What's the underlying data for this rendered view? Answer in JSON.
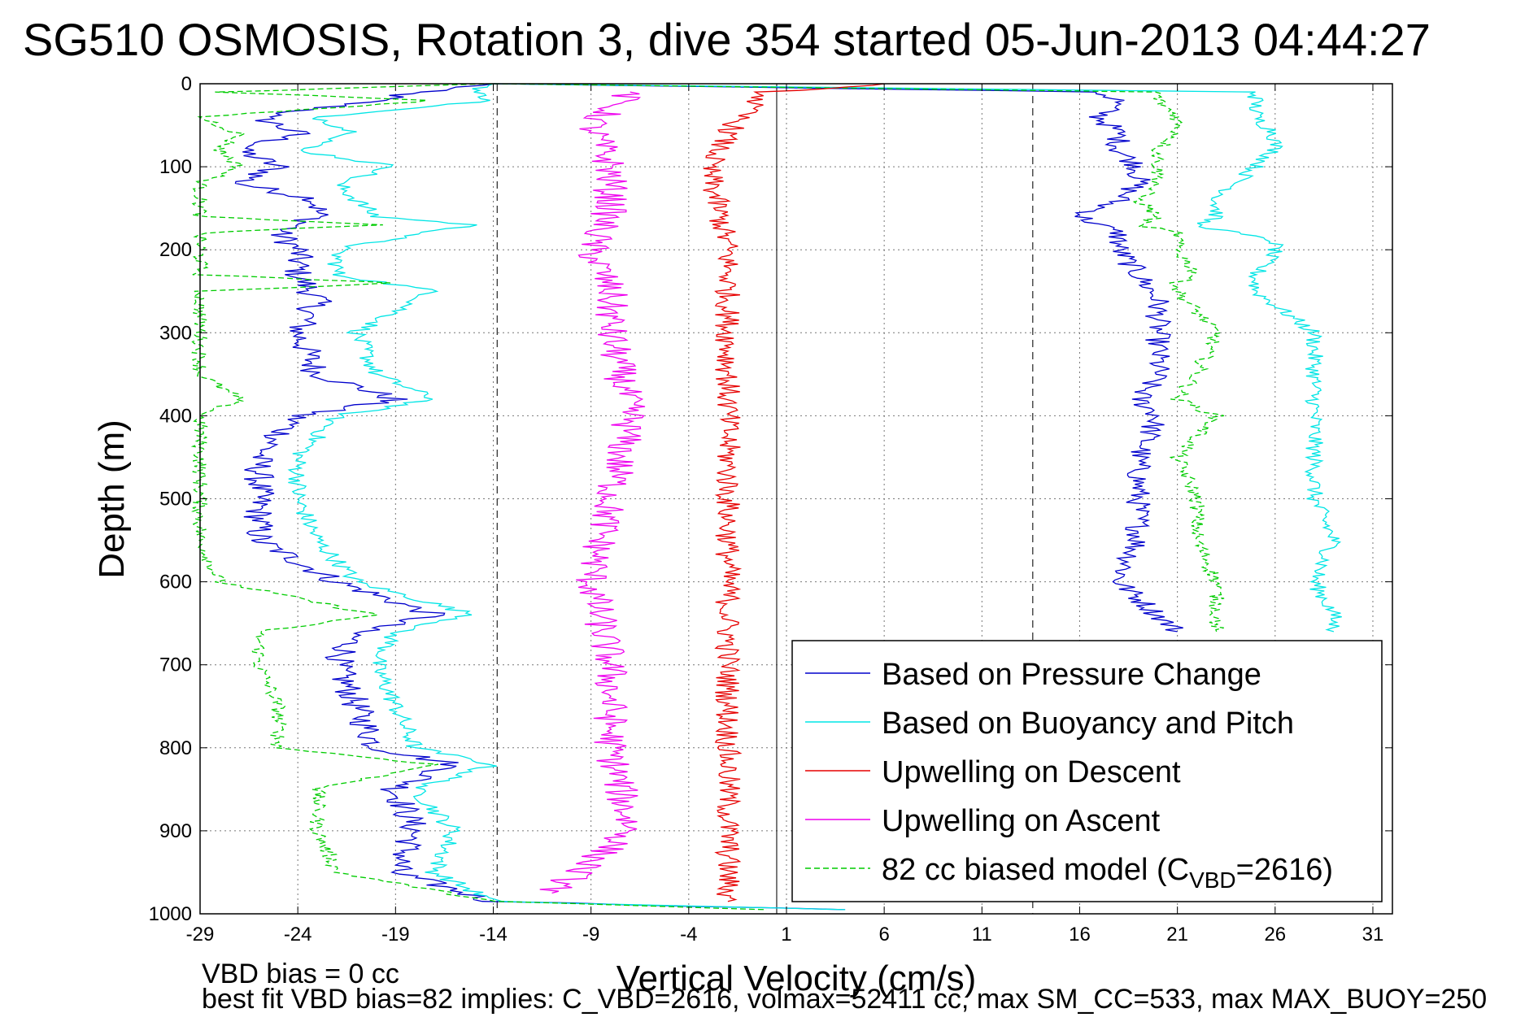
{
  "chart_data": {
    "type": "line",
    "title": "SG510 OSMOSIS, Rotation 3, dive 354 started 05-Jun-2013 04:44:27",
    "xlabel": "Vertical Velocity (cm/s)",
    "ylabel": "Depth (m)",
    "xlim": [
      -29,
      32
    ],
    "ylim": [
      0,
      1000
    ],
    "y_reversed": true,
    "grid": true,
    "x_ticks": [
      -29,
      -24,
      -19,
      -14,
      -9,
      -4,
      1,
      6,
      11,
      16,
      21,
      26,
      31
    ],
    "y_ticks": [
      0,
      100,
      200,
      300,
      400,
      500,
      600,
      700,
      800,
      900,
      1000
    ],
    "reference_lines": [
      -13.8,
      0.5,
      13.6
    ],
    "legend_position": "bottom-right",
    "series": [
      {
        "name": "Based on Pressure Change",
        "color": "#0000cc",
        "style": "solid",
        "depth": [
          0,
          10,
          20,
          40,
          60,
          80,
          100,
          120,
          140,
          160,
          180,
          200,
          230,
          260,
          300,
          350,
          380,
          400,
          450,
          500,
          550,
          600,
          640,
          660,
          700,
          750,
          800,
          820,
          850,
          900,
          950,
          985,
          995
        ],
        "descent": [
          -14,
          -18,
          -20,
          -26,
          -24,
          -27,
          -25,
          -27,
          -23,
          -23,
          -25,
          -24,
          -24,
          -23,
          -24,
          -23,
          -19,
          -24,
          -26,
          -26,
          -26,
          -22,
          -17,
          -21,
          -22,
          -21,
          -20,
          -16,
          -19,
          -18,
          -19,
          -14,
          4
        ],
        "ascent": [
          -14,
          17,
          18,
          17,
          18,
          18,
          19,
          19,
          18,
          16,
          18,
          18,
          19,
          20,
          20,
          20,
          19,
          20,
          19,
          19,
          19,
          18,
          20,
          21,
          null,
          null,
          null,
          null,
          null,
          null,
          null,
          null,
          16
        ]
      },
      {
        "name": "Based on Buoyancy and Pitch",
        "color": "#00e5e5",
        "style": "solid",
        "depth": [
          0,
          10,
          20,
          40,
          60,
          80,
          100,
          120,
          140,
          160,
          170,
          190,
          200,
          230,
          250,
          300,
          350,
          380,
          400,
          450,
          500,
          550,
          600,
          640,
          660,
          700,
          750,
          800,
          820,
          850,
          900,
          950,
          985,
          995
        ],
        "descent": [
          -14,
          -15,
          -14,
          -23,
          -21,
          -24,
          -19,
          -22,
          -21,
          -20,
          -15,
          -20,
          -22,
          -22,
          -17,
          -21,
          -20,
          -17,
          -22,
          -24,
          -24,
          -23,
          -21,
          -15,
          -19,
          -20,
          -19,
          -18,
          -14,
          -18,
          -16,
          -17,
          -14,
          4
        ],
        "ascent": [
          -14,
          25,
          25,
          25,
          26,
          26,
          25,
          24,
          23,
          23,
          22,
          26,
          26,
          25,
          25,
          28,
          28,
          28,
          28,
          28,
          28,
          29,
          28,
          29,
          29,
          null,
          null,
          null,
          null,
          null,
          null,
          null,
          null,
          26
        ]
      },
      {
        "name": "Upwelling on Descent",
        "color": "#e60000",
        "style": "solid",
        "depth": [
          0,
          10,
          30,
          60,
          100,
          150,
          200,
          250,
          300,
          400,
          500,
          600,
          700,
          800,
          900,
          985
        ],
        "values": [
          6,
          0,
          -1,
          -2,
          -3,
          -2.5,
          -2,
          -2,
          -2,
          -2,
          -2,
          -2,
          -2,
          -2,
          -2,
          -2
        ]
      },
      {
        "name": "Upwelling on Ascent",
        "color": "#ee00ee",
        "style": "solid",
        "depth": [
          10,
          50,
          100,
          150,
          200,
          250,
          300,
          400,
          500,
          600,
          700,
          800,
          900,
          975
        ],
        "values": [
          -7,
          -9,
          -8,
          -8,
          -9,
          -8,
          -8,
          -7,
          -8,
          -9,
          -8,
          -8,
          -7,
          -11
        ]
      },
      {
        "name": "82 cc biased model (C_VBD=2616)",
        "color": "#00cc00",
        "style": "dashed",
        "depth": [
          0,
          10,
          20,
          40,
          60,
          80,
          100,
          120,
          140,
          160,
          170,
          180,
          200,
          230,
          240,
          250,
          300,
          350,
          380,
          400,
          450,
          500,
          550,
          600,
          640,
          660,
          700,
          750,
          800,
          820,
          850,
          900,
          950,
          985,
          995
        ],
        "descent": [
          -14,
          -28,
          -17,
          -29,
          -27,
          -28,
          -27,
          -29,
          -29,
          -29,
          -20,
          -29,
          -29,
          -29,
          -19,
          -29,
          -29,
          -29,
          -27,
          -29,
          -29,
          -29,
          -29,
          -28,
          -20,
          -26,
          -26,
          -25,
          -25,
          -17,
          -23,
          -23,
          -22,
          -14,
          0
        ],
        "ascent": [
          -14,
          20,
          20,
          21,
          21,
          20,
          20,
          20,
          19,
          20,
          19,
          21,
          21,
          22,
          21,
          21,
          23,
          22,
          21,
          23,
          21,
          22,
          22,
          23,
          23,
          23,
          null,
          null,
          null,
          null,
          null,
          null,
          null,
          null,
          20
        ]
      }
    ],
    "legend": [
      {
        "label": "Based on Pressure Change",
        "color": "#0000cc",
        "style": "solid"
      },
      {
        "label": "Based on Buoyancy and Pitch",
        "color": "#00e5e5",
        "style": "solid"
      },
      {
        "label": "Upwelling on Descent",
        "color": "#e60000",
        "style": "solid"
      },
      {
        "label": "Upwelling on Ascent",
        "color": "#ee00ee",
        "style": "solid"
      },
      {
        "label": "82 cc biased model (C",
        "sub": "VBD",
        "tail": "=2616)",
        "color": "#00cc00",
        "style": "dashed"
      }
    ]
  },
  "footer": {
    "line1": "VBD bias = 0 cc",
    "line2": "best fit VBD bias=82 implies: C_VBD=2616, volmax=52411 cc, max SM_CC=533, max MAX_BUOY=250"
  }
}
